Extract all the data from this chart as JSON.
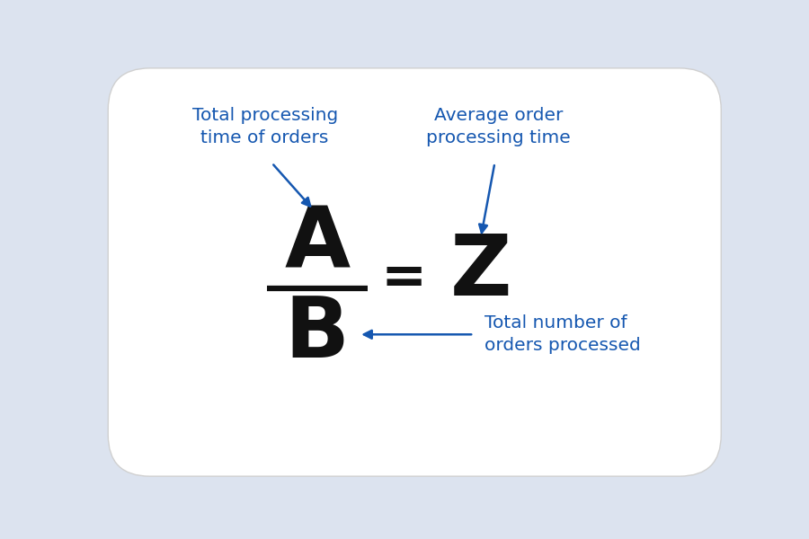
{
  "background_color": "#dce3ef",
  "ellipse_color": "#ffffff",
  "ellipse_edge_color": "#d0d0d0",
  "label_color": "#1557b0",
  "formula_color": "#111111",
  "label1_text": "Total processing\ntime of orders",
  "label2_text": "Average order\nprocessing time",
  "label3_text": "Total number of\norders processed",
  "letter_A": "A",
  "letter_B": "B",
  "letter_Z": "Z",
  "equals": "=",
  "font_size_labels": 14.5,
  "font_size_formula": 68,
  "font_size_equals": 44
}
